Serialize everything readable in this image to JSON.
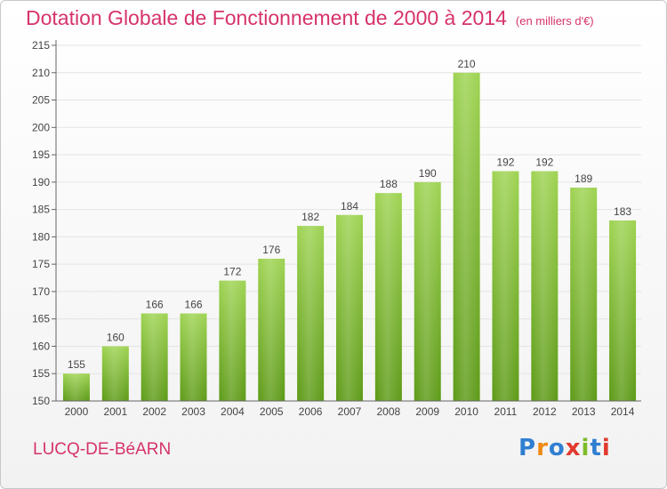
{
  "header": {
    "title": "Dotation Globale de Fonctionnement de 2000 à 2014",
    "subtitle": "(en milliers d'€)"
  },
  "footer": {
    "commune": "LUCQ-DE-BéARN",
    "logo_text": "Proxiti"
  },
  "colors": {
    "title": "#d6336c",
    "bar_top": "#9ed352",
    "bar_bottom": "#5d9a17",
    "logo": [
      "#2f7fd1",
      "#ef8a12",
      "#2f7fd1",
      "#e23a2e",
      "#7dbb28",
      "#2f7fd1",
      "#e23a2e"
    ]
  },
  "chart_data": {
    "type": "bar",
    "categories": [
      "2000",
      "2001",
      "2002",
      "2003",
      "2004",
      "2005",
      "2006",
      "2007",
      "2008",
      "2009",
      "2010",
      "2011",
      "2012",
      "2013",
      "2014"
    ],
    "values": [
      155,
      160,
      166,
      166,
      172,
      176,
      182,
      184,
      188,
      190,
      210,
      192,
      192,
      189,
      183
    ],
    "title": "Dotation Globale de Fonctionnement de 2000 à 2014",
    "subtitle": "(en milliers d'€)",
    "xlabel": "",
    "ylabel": "",
    "ylim": [
      150,
      215
    ],
    "yticks": [
      150,
      155,
      160,
      165,
      170,
      175,
      180,
      185,
      190,
      195,
      200,
      205,
      210,
      215
    ],
    "grid": true,
    "data_labels": true
  }
}
